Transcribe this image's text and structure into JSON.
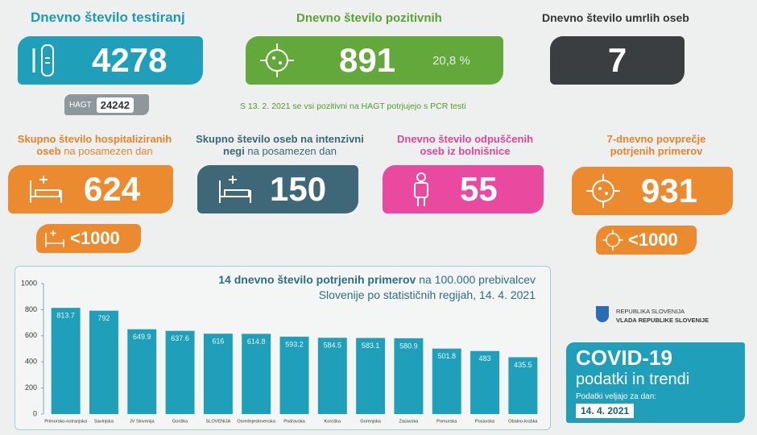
{
  "tests": {
    "title": "Dnevno število testiranj",
    "value": "4278",
    "hagt_label": "HAGT",
    "hagt_value": "24242"
  },
  "positive": {
    "title": "Dnevno število pozitivnih",
    "value": "891",
    "share": "20,8 %"
  },
  "deaths": {
    "title": "Dnevno število umrlih oseb",
    "value": "7"
  },
  "note": "S 13. 2. 2021 se vsi pozitivni na HAGT potrjujejo s PCR testi",
  "hospitalized": {
    "title_bold": "Skupno število hospitaliziranih oseb",
    "title_rest": "na posamezen dan",
    "value": "624",
    "threshold": "<1000"
  },
  "icu": {
    "title_bold": "Skupno število oseb na intenzivni negi",
    "title_rest": "na posamezen dan",
    "value": "150"
  },
  "discharged": {
    "title": "Dnevno število odpuščenih oseb iz bolnišnice",
    "value": "55"
  },
  "average": {
    "title": "7-dnevno povprečje potrjenih primerov",
    "value": "931",
    "threshold": "<1000"
  },
  "logo": {
    "line1": "REPUBLIKA SLOVENIJA",
    "line2": "VLADA REPUBLIKE SLOVENIJE"
  },
  "badge": {
    "title": "COVID-19",
    "subtitle": "podatki in trendi",
    "date_label": "Podatki veljajo za dan:",
    "date": "14. 4. 2021"
  },
  "chart_data": {
    "type": "bar",
    "title": "14 dnevno število potrjenih primerov",
    "subtitle": "na 100.000 prebivalcev Slovenije po statističnih regijah, 14. 4. 2021",
    "categories": [
      "Primorsko-notranjska",
      "Savinjska",
      "JV Slovenija",
      "Goriška",
      "SLOVENIJA",
      "Osrednjeslovenska",
      "Podravska",
      "Koroška",
      "Gorenjska",
      "Zasavska",
      "Pomurska",
      "Posavska",
      "Obalno-kraška"
    ],
    "values": [
      813.7,
      792,
      649.9,
      637.6,
      616,
      614.8,
      593.2,
      584.5,
      583.1,
      580.9,
      501.8,
      483,
      435.5
    ],
    "color": "#1f9fba",
    "ylim": [
      0,
      1000
    ],
    "yticks": [
      0,
      200,
      400,
      600,
      800,
      1000
    ],
    "grid": false
  }
}
